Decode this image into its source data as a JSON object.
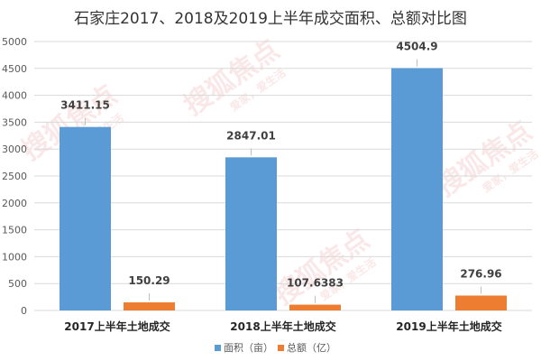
{
  "chart_data": {
    "type": "bar",
    "title": "石家庄2017、2018及2019上半年成交面积、总额对比图",
    "categories": [
      "2017上半年土地成交",
      "2018上半年土地成交",
      "2019上半年土地成交"
    ],
    "series": [
      {
        "name": "面积（亩）",
        "values": [
          3411.15,
          2847.01,
          4504.9
        ],
        "labels": [
          "3411.15",
          "2847.01",
          "4504.9"
        ],
        "color": "#5b9bd5"
      },
      {
        "name": "总额（亿）",
        "values": [
          150.29,
          107.6383,
          276.96
        ],
        "labels": [
          "150.29",
          "107.6383",
          "276.96"
        ],
        "color": "#ed7d31"
      }
    ],
    "yticks": [
      "0",
      "500",
      "1000",
      "1500",
      "2000",
      "2500",
      "3000",
      "3500",
      "4000",
      "4500",
      "5000"
    ],
    "ylim": [
      0,
      5000
    ],
    "grid": true,
    "legend": "bottom"
  },
  "watermark": {
    "brand": "搜狐焦点",
    "slogan": "爱家，爱生活"
  }
}
